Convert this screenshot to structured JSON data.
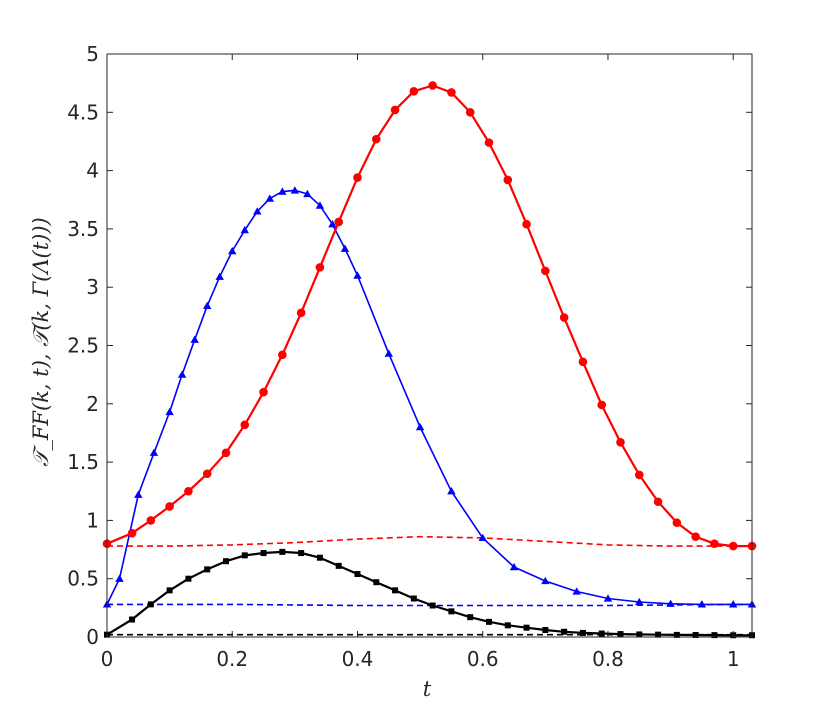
{
  "chart_data": {
    "type": "line",
    "xlabel": "t",
    "ylabel": "𝒯_FF(k, t), 𝒯(k, Γ(Λ(t)))",
    "xlim": [
      0,
      1.03
    ],
    "ylim": [
      0,
      5
    ],
    "xticks": [
      "0",
      "0.2",
      "0.4",
      "0.6",
      "0.8",
      "1"
    ],
    "yticks": [
      "0",
      "0.5",
      "1",
      "1.5",
      "2",
      "2.5",
      "3",
      "3.5",
      "4",
      "4.5",
      "5"
    ],
    "grid": false,
    "legend": "none",
    "series": [
      {
        "color": "#0000ff",
        "style": "solid",
        "marker": "triangle",
        "x": [
          0,
          0.02,
          0.05,
          0.075,
          0.1,
          0.12,
          0.14,
          0.16,
          0.18,
          0.2,
          0.22,
          0.24,
          0.26,
          0.28,
          0.3,
          0.32,
          0.34,
          0.36,
          0.38,
          0.4,
          0.45,
          0.5,
          0.55,
          0.6,
          0.65,
          0.7,
          0.75,
          0.8,
          0.85,
          0.9,
          0.95,
          1.0,
          1.03
        ],
        "y": [
          0.28,
          0.5,
          1.22,
          1.58,
          1.93,
          2.25,
          2.55,
          2.84,
          3.09,
          3.31,
          3.49,
          3.65,
          3.76,
          3.82,
          3.83,
          3.8,
          3.7,
          3.54,
          3.33,
          3.1,
          2.43,
          1.8,
          1.25,
          0.85,
          0.6,
          0.48,
          0.39,
          0.33,
          0.3,
          0.285,
          0.28,
          0.28,
          0.28
        ]
      },
      {
        "color": "#ff0000",
        "style": "solid",
        "marker": "circle",
        "x": [
          0,
          0.04,
          0.07,
          0.1,
          0.13,
          0.16,
          0.19,
          0.22,
          0.25,
          0.28,
          0.31,
          0.34,
          0.37,
          0.4,
          0.43,
          0.46,
          0.49,
          0.52,
          0.55,
          0.58,
          0.61,
          0.64,
          0.67,
          0.7,
          0.73,
          0.76,
          0.79,
          0.82,
          0.85,
          0.88,
          0.91,
          0.94,
          0.97,
          1.0,
          1.03
        ],
        "y": [
          0.8,
          0.89,
          1.0,
          1.12,
          1.25,
          1.4,
          1.58,
          1.82,
          2.1,
          2.42,
          2.78,
          3.17,
          3.56,
          3.94,
          4.27,
          4.52,
          4.68,
          4.73,
          4.67,
          4.5,
          4.24,
          3.92,
          3.54,
          3.14,
          2.74,
          2.36,
          1.99,
          1.67,
          1.39,
          1.16,
          0.98,
          0.86,
          0.8,
          0.78,
          0.78
        ]
      },
      {
        "color": "#000000",
        "style": "solid",
        "marker": "square",
        "x": [
          0,
          0.04,
          0.07,
          0.1,
          0.13,
          0.16,
          0.19,
          0.22,
          0.25,
          0.28,
          0.31,
          0.34,
          0.37,
          0.4,
          0.43,
          0.46,
          0.49,
          0.52,
          0.55,
          0.58,
          0.61,
          0.64,
          0.67,
          0.7,
          0.73,
          0.76,
          0.79,
          0.82,
          0.85,
          0.88,
          0.91,
          0.94,
          0.97,
          1.0,
          1.03
        ],
        "y": [
          0.02,
          0.15,
          0.28,
          0.4,
          0.5,
          0.58,
          0.65,
          0.7,
          0.72,
          0.73,
          0.72,
          0.68,
          0.61,
          0.54,
          0.47,
          0.4,
          0.33,
          0.27,
          0.22,
          0.17,
          0.13,
          0.1,
          0.08,
          0.06,
          0.045,
          0.035,
          0.03,
          0.025,
          0.022,
          0.02,
          0.018,
          0.017,
          0.016,
          0.015,
          0.015
        ]
      },
      {
        "color": "#ff0000",
        "style": "dashed",
        "marker": "none",
        "x": [
          0,
          0.1,
          0.2,
          0.3,
          0.4,
          0.5,
          0.6,
          0.7,
          0.8,
          0.9,
          1.0,
          1.03
        ],
        "y": [
          0.78,
          0.78,
          0.79,
          0.81,
          0.84,
          0.86,
          0.85,
          0.82,
          0.79,
          0.78,
          0.78,
          0.78
        ]
      },
      {
        "color": "#0000ff",
        "style": "dashed",
        "marker": "none",
        "x": [
          0,
          0.2,
          0.4,
          0.6,
          0.8,
          1.0,
          1.03
        ],
        "y": [
          0.28,
          0.28,
          0.27,
          0.27,
          0.27,
          0.28,
          0.28
        ]
      },
      {
        "color": "#000000",
        "style": "dashed",
        "marker": "none",
        "x": [
          0,
          0.5,
          1.03
        ],
        "y": [
          0.02,
          0.02,
          0.02
        ]
      }
    ]
  }
}
